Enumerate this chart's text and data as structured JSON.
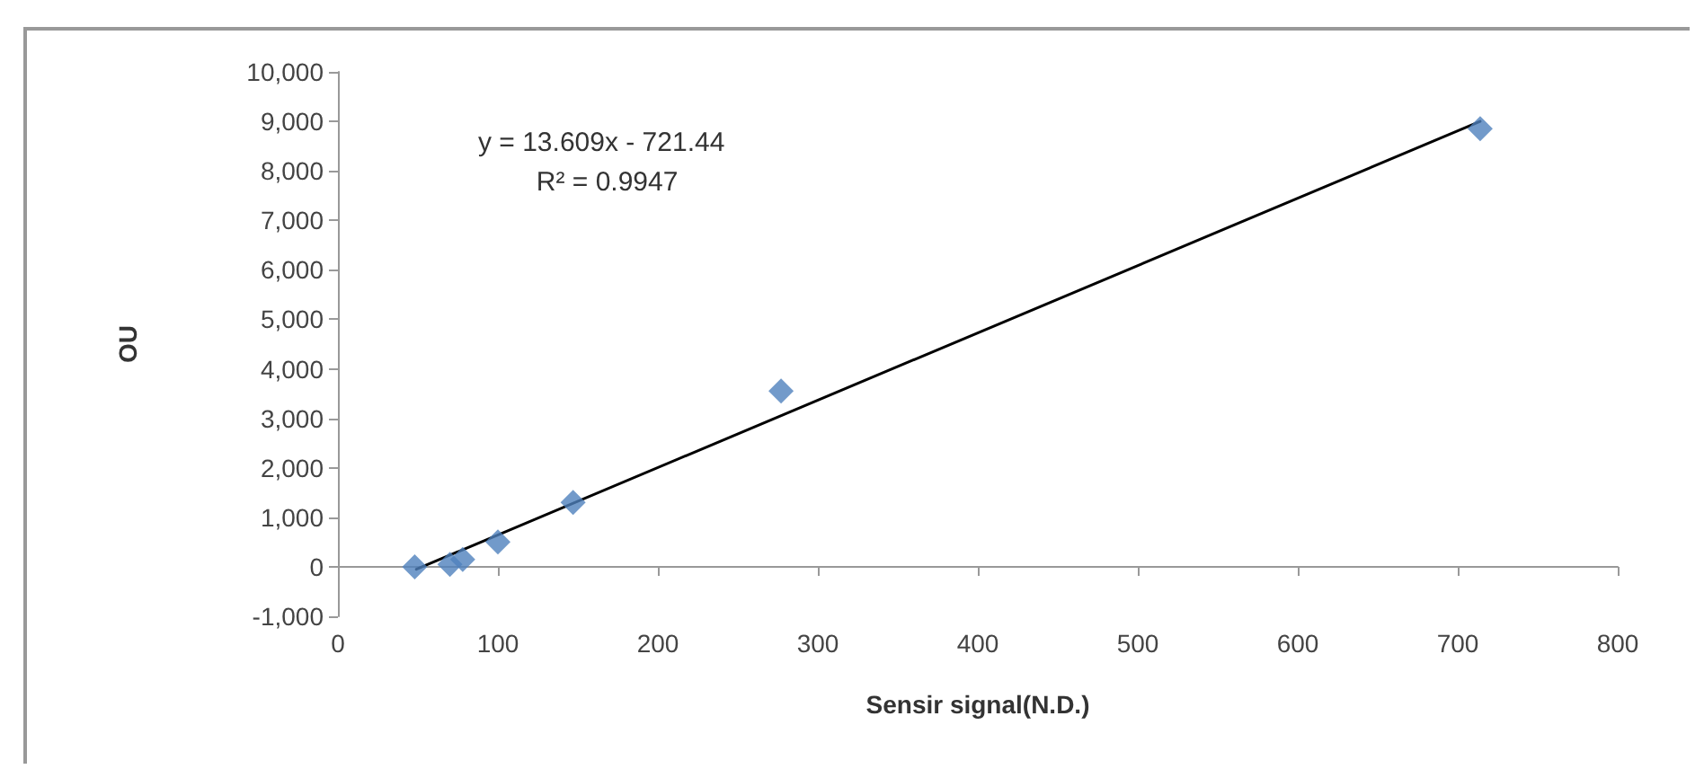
{
  "chart_data": {
    "type": "scatter",
    "xlabel": "Sensir signal(N.D.)",
    "ylabel": "OU",
    "annotations": [
      "y = 13.609x - 721.44",
      "R² = 0.9947"
    ],
    "xlim": [
      0,
      800
    ],
    "xticks": [
      0,
      100,
      200,
      300,
      400,
      500,
      600,
      700,
      800
    ],
    "ylim": [
      -1000,
      10000
    ],
    "yticks": [
      {
        "value": -1000,
        "label": "-1,000"
      },
      0,
      {
        "value": 1000,
        "label": "1,000"
      },
      {
        "value": 2000,
        "label": "2,000"
      },
      {
        "value": 3000,
        "label": "3,000"
      },
      {
        "value": 4000,
        "label": "4,000"
      },
      {
        "value": 5000,
        "label": "5,000"
      },
      {
        "value": 6000,
        "label": "6,000"
      },
      {
        "value": 7000,
        "label": "7,000"
      },
      {
        "value": 8000,
        "label": "8,000"
      },
      {
        "value": 9000,
        "label": "9,000"
      },
      {
        "value": 10000,
        "label": "10,000"
      }
    ],
    "grid": false,
    "marker": "diamond",
    "series": [
      {
        "color": "#4f81bd",
        "x": [
          48,
          70,
          78,
          100,
          147,
          277,
          714
        ],
        "values": [
          0,
          50,
          150,
          500,
          1300,
          3550,
          8850
        ]
      },
      {
        "type": "line",
        "color": "#000000",
        "x": [
          49,
          714
        ],
        "values": [
          -50,
          9000
        ],
        "marker": "none",
        "line_style": "solid"
      }
    ]
  }
}
